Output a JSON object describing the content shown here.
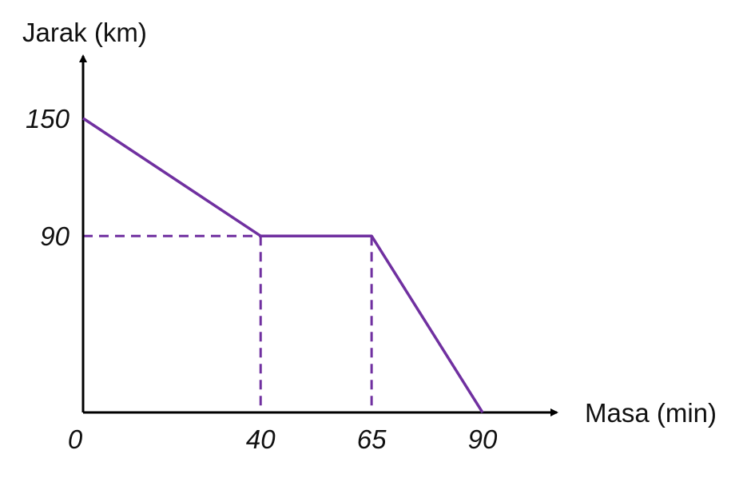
{
  "chart_data": {
    "type": "line",
    "xlabel": "Masa (min)",
    "ylabel": "Jarak (km)",
    "x_ticks": [
      0,
      40,
      65,
      90
    ],
    "y_ticks": [
      90,
      150
    ],
    "xlim": [
      0,
      90
    ],
    "ylim": [
      0,
      150
    ],
    "grid": false,
    "colors": {
      "line": "#7030a0",
      "axis": "#000000"
    },
    "series": [
      {
        "x": [
          0,
          40,
          65,
          90
        ],
        "y": [
          150,
          90,
          90,
          0
        ]
      }
    ],
    "guides": [
      {
        "x": 40,
        "y": 90
      },
      {
        "x": 65,
        "y": 90
      }
    ]
  }
}
